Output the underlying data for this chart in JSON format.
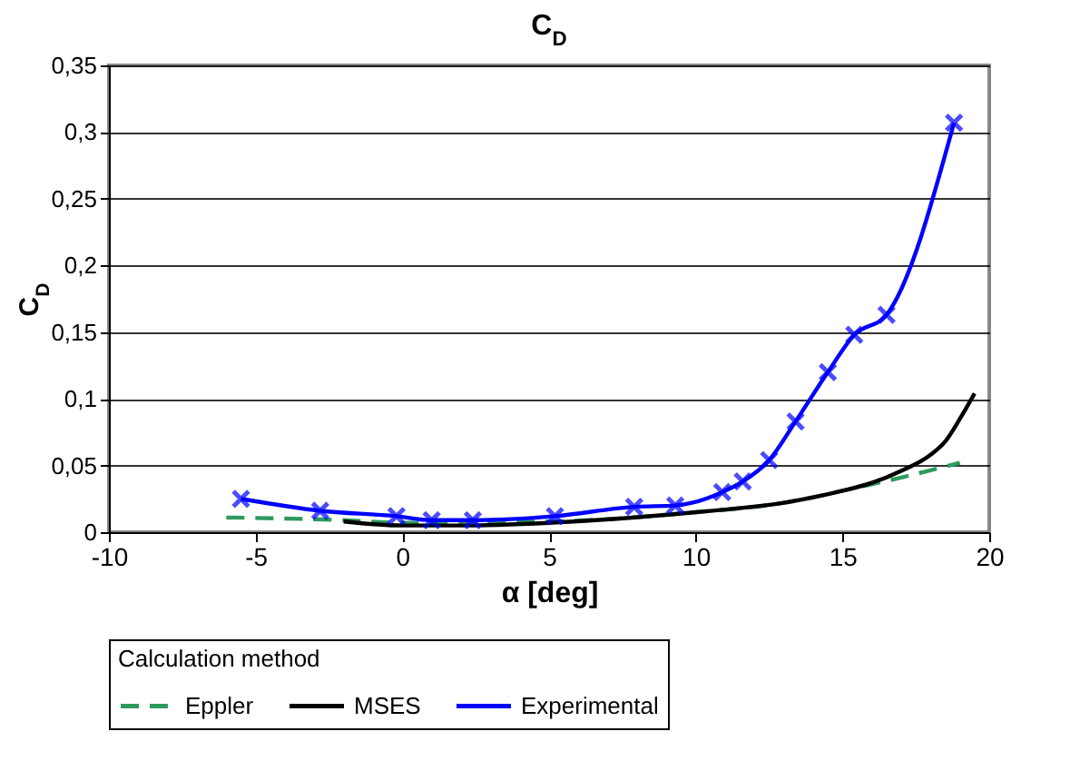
{
  "chart_data": {
    "type": "line",
    "title": "C$_{D}$",
    "xlabel": "α [deg]",
    "ylabel": "C$_{D}$",
    "legend_title": "Calculation method",
    "legend": "bottom",
    "grid": "y",
    "xlim": [
      -10,
      20
    ],
    "ylim": [
      0,
      0.35
    ],
    "xticks": [
      -10,
      -5,
      0,
      5,
      10,
      15,
      20
    ],
    "yticks": [
      {
        "value": 0,
        "label": "0"
      },
      {
        "value": 0.05,
        "label": "0,05"
      },
      {
        "value": 0.1,
        "label": "0,1"
      },
      {
        "value": 0.15,
        "label": "0,15"
      },
      {
        "value": 0.2,
        "label": "0,2"
      },
      {
        "value": 0.25,
        "label": "0,25"
      },
      {
        "value": 0.3,
        "label": "0,3"
      },
      {
        "value": 0.35,
        "label": "0,35"
      }
    ],
    "series": [
      {
        "name": "Eppler",
        "color": "#2e9a5e",
        "line_style": "dashed",
        "marker": "none",
        "x": [
          -6,
          -2,
          0,
          5,
          10,
          13,
          15,
          17,
          19
        ],
        "values": [
          0.011,
          0.009,
          0.007,
          0.008,
          0.015,
          0.022,
          0.031,
          0.041,
          0.052
        ]
      },
      {
        "name": "MSES",
        "color": "#000000",
        "line_style": "solid",
        "marker": "none",
        "x": [
          -2,
          0,
          2,
          5,
          10,
          13,
          15,
          16,
          17,
          18,
          18.5,
          19,
          19.5
        ],
        "values": [
          0.008,
          0.005,
          0.005,
          0.007,
          0.015,
          0.022,
          0.031,
          0.037,
          0.046,
          0.058,
          0.068,
          0.085,
          0.104
        ]
      },
      {
        "name": "Experimental",
        "color": "#0000ff",
        "line_style": "solid",
        "marker": "cross",
        "x": [
          -5.5,
          -2.8,
          -0.2,
          1,
          2.4,
          5.2,
          7.9,
          9.3,
          10.9,
          11.6,
          12.5,
          13.4,
          14.5,
          15.4,
          16.5,
          18.8
        ],
        "values": [
          0.025,
          0.016,
          0.012,
          0.009,
          0.009,
          0.012,
          0.019,
          0.02,
          0.03,
          0.038,
          0.054,
          0.083,
          0.12,
          0.148,
          0.163,
          0.307
        ]
      }
    ]
  }
}
